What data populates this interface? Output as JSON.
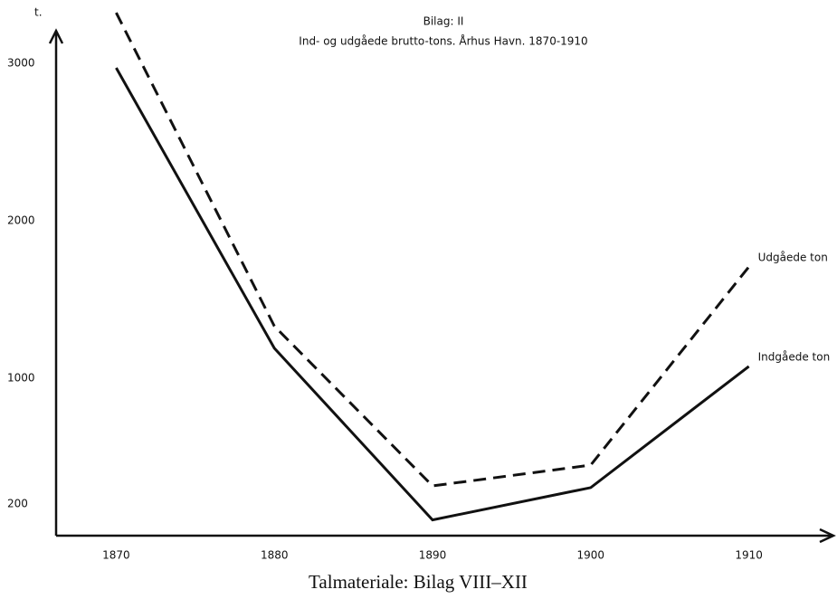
{
  "chart_data": {
    "type": "line",
    "title": "Bilag: II",
    "subtitle": "Ind- og udgåede brutto-tons. Århus Havn. 1870-1910",
    "y_label": "t.",
    "caption": "Talmateriale: Bilag VIII–XII",
    "x": [
      1870,
      1880,
      1890,
      1900,
      1910
    ],
    "xlim": [
      1866.2,
      1915.4
    ],
    "xticks": [
      1870,
      1880,
      1890,
      1900,
      1910
    ],
    "ylim": [
      0,
      3200
    ],
    "yticks": [
      200,
      1000,
      2000,
      3000
    ],
    "grid": false,
    "series": [
      {
        "name": "Udgåede ton",
        "color": "#111111",
        "style": "dashed",
        "values": [
          3320,
          1330,
          316,
          448,
          1707
        ]
      },
      {
        "name": "Indgåede ton",
        "color": "#111111",
        "style": "solid",
        "values": [
          2970,
          1190,
          100,
          305,
          1075
        ]
      }
    ]
  }
}
